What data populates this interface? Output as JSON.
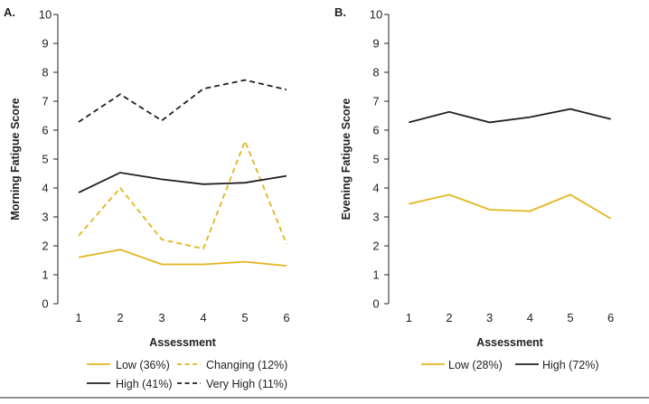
{
  "colors": {
    "gold": "#e3b51e",
    "black": "#231f20",
    "axis": "#231f20",
    "rule": "#231f20"
  },
  "chart_data": [
    {
      "panel_label": "A.",
      "type": "line",
      "xlabel": "Assessment",
      "ylabel": "Morning Fatigue Score",
      "x": [
        1,
        2,
        3,
        4,
        5,
        6
      ],
      "xlim": [
        0.5,
        6.5
      ],
      "ylim": [
        0,
        10
      ],
      "yticks": [
        0,
        1,
        2,
        3,
        4,
        5,
        6,
        7,
        8,
        9,
        10
      ],
      "grid": false,
      "legend_position": "bottom",
      "series": [
        {
          "name": "Low (36%)",
          "color": "gold",
          "style": "solid",
          "values": [
            1.6,
            1.87,
            1.36,
            1.36,
            1.45,
            1.31
          ]
        },
        {
          "name": "Changing (12%)",
          "color": "gold",
          "style": "dashed",
          "values": [
            2.35,
            4.0,
            2.22,
            1.9,
            5.62,
            2.07
          ]
        },
        {
          "name": "High (41%)",
          "color": "black",
          "style": "solid",
          "values": [
            3.84,
            4.53,
            4.3,
            4.13,
            4.18,
            4.42
          ]
        },
        {
          "name": "Very High (11%)",
          "color": "black",
          "style": "dashed",
          "values": [
            6.28,
            7.24,
            6.33,
            7.43,
            7.73,
            7.4
          ]
        }
      ]
    },
    {
      "panel_label": "B.",
      "type": "line",
      "xlabel": "Assessment",
      "ylabel": "Evening Fatigue Score",
      "x": [
        1,
        2,
        3,
        4,
        5,
        6
      ],
      "xlim": [
        0.5,
        6.5
      ],
      "ylim": [
        0,
        10
      ],
      "yticks": [
        0,
        1,
        2,
        3,
        4,
        5,
        6,
        7,
        8,
        9,
        10
      ],
      "grid": false,
      "legend_position": "bottom",
      "series": [
        {
          "name": "Low (28%)",
          "color": "gold",
          "style": "solid",
          "values": [
            3.45,
            3.77,
            3.25,
            3.2,
            3.77,
            2.94
          ]
        },
        {
          "name": "High (72%)",
          "color": "black",
          "style": "solid",
          "values": [
            6.27,
            6.63,
            6.27,
            6.45,
            6.73,
            6.38
          ]
        }
      ]
    }
  ]
}
